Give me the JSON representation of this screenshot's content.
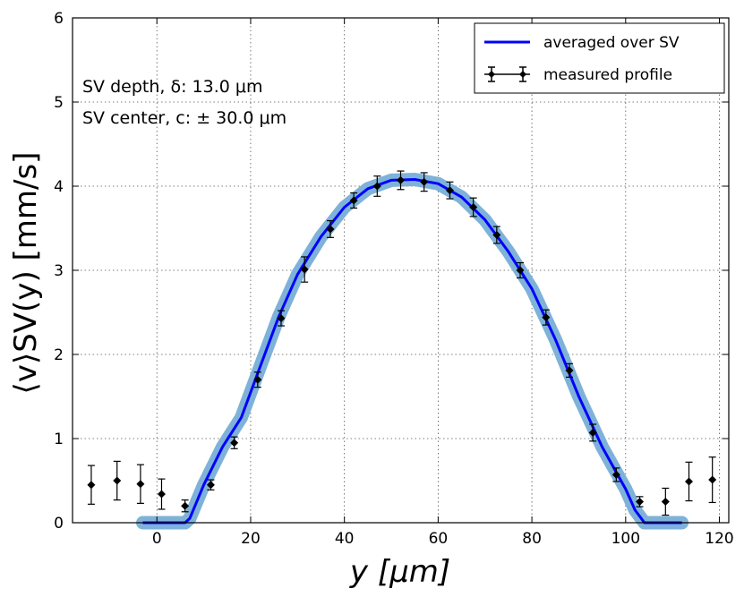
{
  "chart_data": {
    "type": "line",
    "xlabel": "y [μm]",
    "ylabel": "⟨v⟩SV(y) [mm/s]",
    "xlim": [
      -18,
      122
    ],
    "ylim": [
      0,
      6
    ],
    "xticks": [
      0,
      20,
      40,
      60,
      80,
      100,
      120
    ],
    "yticks": [
      0,
      1,
      2,
      3,
      4,
      5,
      6
    ],
    "grid": true,
    "legend_position": "top-right",
    "annotations": [
      "SV depth, δ: 13.0 μm",
      "SV center, c: ± 30.0 μm"
    ],
    "series": [
      {
        "name": "averaged over SV",
        "kind": "line",
        "color": "#0000ff",
        "band_color": "#7fb2d8",
        "x": [
          -3,
          6,
          7,
          10,
          14,
          18,
          22,
          26,
          30,
          35,
          40,
          45,
          50,
          55,
          60,
          65,
          70,
          75,
          80,
          85,
          90,
          95,
          100,
          102,
          104,
          112
        ],
        "y": [
          0,
          0,
          0.05,
          0.45,
          0.9,
          1.25,
          1.85,
          2.45,
          2.95,
          3.4,
          3.75,
          3.97,
          4.07,
          4.08,
          4.03,
          3.87,
          3.6,
          3.22,
          2.78,
          2.18,
          1.5,
          0.9,
          0.4,
          0.15,
          0,
          0
        ]
      },
      {
        "name": "measured profile",
        "kind": "errorbar",
        "color": "#000000",
        "x": [
          -14,
          -8.5,
          -3.5,
          1,
          6,
          11.5,
          16.5,
          21.5,
          26.5,
          31.5,
          37,
          42,
          47,
          52,
          57,
          62.5,
          67.5,
          72.5,
          77.5,
          83,
          88,
          93,
          98,
          103,
          108.5,
          113.5,
          118.5
        ],
        "y": [
          0.45,
          0.5,
          0.46,
          0.34,
          0.2,
          0.45,
          0.95,
          1.7,
          2.43,
          3.01,
          3.49,
          3.83,
          4.0,
          4.07,
          4.05,
          3.95,
          3.75,
          3.42,
          3.0,
          2.44,
          1.81,
          1.07,
          0.57,
          0.25,
          0.25,
          0.49,
          0.51
        ],
        "err": [
          0.23,
          0.23,
          0.23,
          0.18,
          0.07,
          0.06,
          0.07,
          0.09,
          0.09,
          0.15,
          0.1,
          0.09,
          0.12,
          0.11,
          0.11,
          0.1,
          0.11,
          0.1,
          0.09,
          0.09,
          0.08,
          0.1,
          0.08,
          0.06,
          0.16,
          0.23,
          0.27
        ]
      }
    ]
  }
}
